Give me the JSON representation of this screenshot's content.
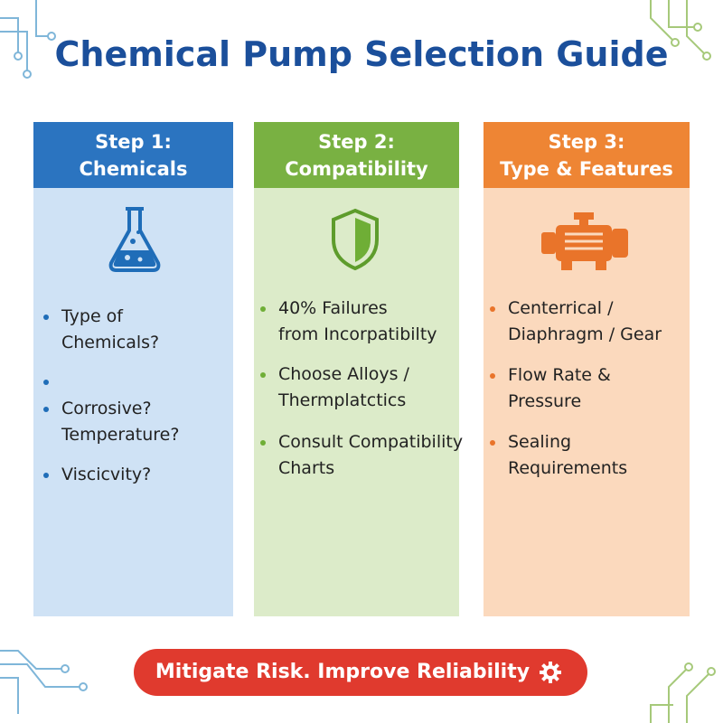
{
  "header": {
    "title": "Chemical Pump Selection Guide"
  },
  "steps": [
    {
      "label": "Step 1:",
      "heading": "Chemicals",
      "bullets": [
        [
          "Type of",
          "Chemicals?"
        ],
        [
          "Corrosive?",
          "Temperature?"
        ],
        [
          "Viscicvity?"
        ]
      ]
    },
    {
      "label": "Step 2:",
      "heading": "Compatibility",
      "bullets": [
        [
          "40% Failures",
          "from Incorpatibilty"
        ],
        [
          "Choose Alloys /",
          "Thermplatctics"
        ],
        [
          "Consult Compatibility",
          "Charts"
        ]
      ]
    },
    {
      "label": "Step 3:",
      "heading": "Type & Features",
      "bullets": [
        [
          "Centerrical /",
          "Diaphragm / Gear"
        ],
        [
          "Flow Rate &",
          "Pressure"
        ],
        [
          "Sealing",
          "Requirements"
        ]
      ]
    }
  ],
  "footer": {
    "banner": "Mitigate Risk. Improve Reliability"
  }
}
